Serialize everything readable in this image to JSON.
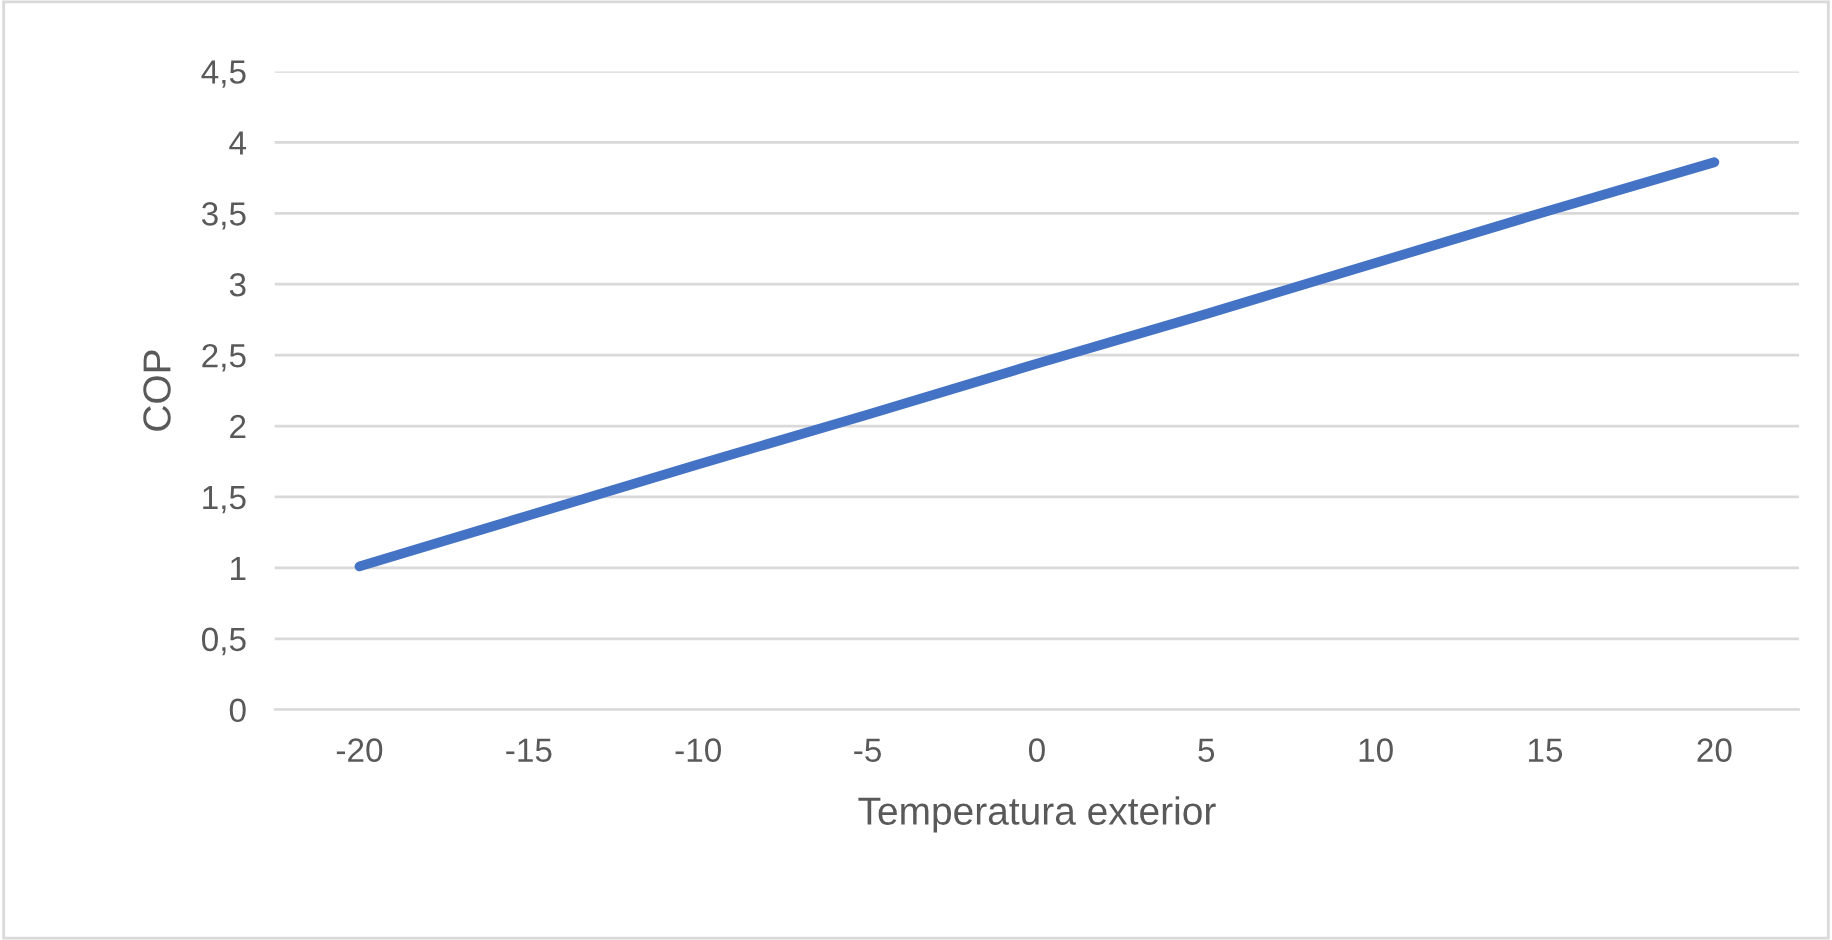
{
  "chart_data": {
    "type": "line",
    "xlabel": "Temperatura exterior",
    "ylabel": "COP",
    "categories": [
      "-20",
      "-15",
      "-10",
      "-5",
      "0",
      "5",
      "10",
      "15",
      "20"
    ],
    "series": [
      {
        "color": "#4472c4",
        "values": [
          1.01,
          1.37,
          1.73,
          2.08,
          2.44,
          2.79,
          3.15,
          3.51,
          3.86
        ]
      }
    ],
    "ylim": [
      0,
      4.5
    ],
    "yticks": [
      0,
      {
        "value": 0.5,
        "label": "0,5"
      },
      1,
      {
        "value": 1.5,
        "label": "1,5"
      },
      2,
      {
        "value": 2.5,
        "label": "2,5"
      },
      3,
      {
        "value": 3.5,
        "label": "3,5"
      },
      4,
      {
        "value": 4.5,
        "label": "4,5"
      }
    ],
    "grid": "y",
    "marker": "none",
    "line_style": "solid",
    "legend": false
  }
}
